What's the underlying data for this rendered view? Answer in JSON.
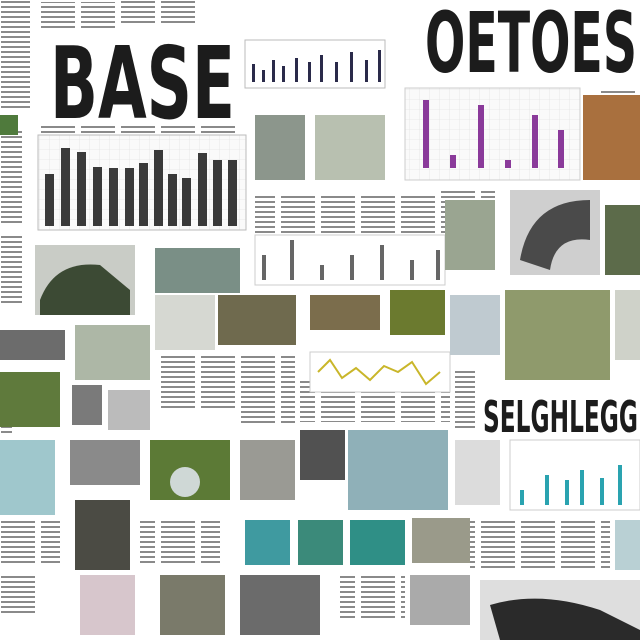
{
  "words": [
    "BASE",
    "OETOES",
    "SELGHLEGG"
  ]
}
